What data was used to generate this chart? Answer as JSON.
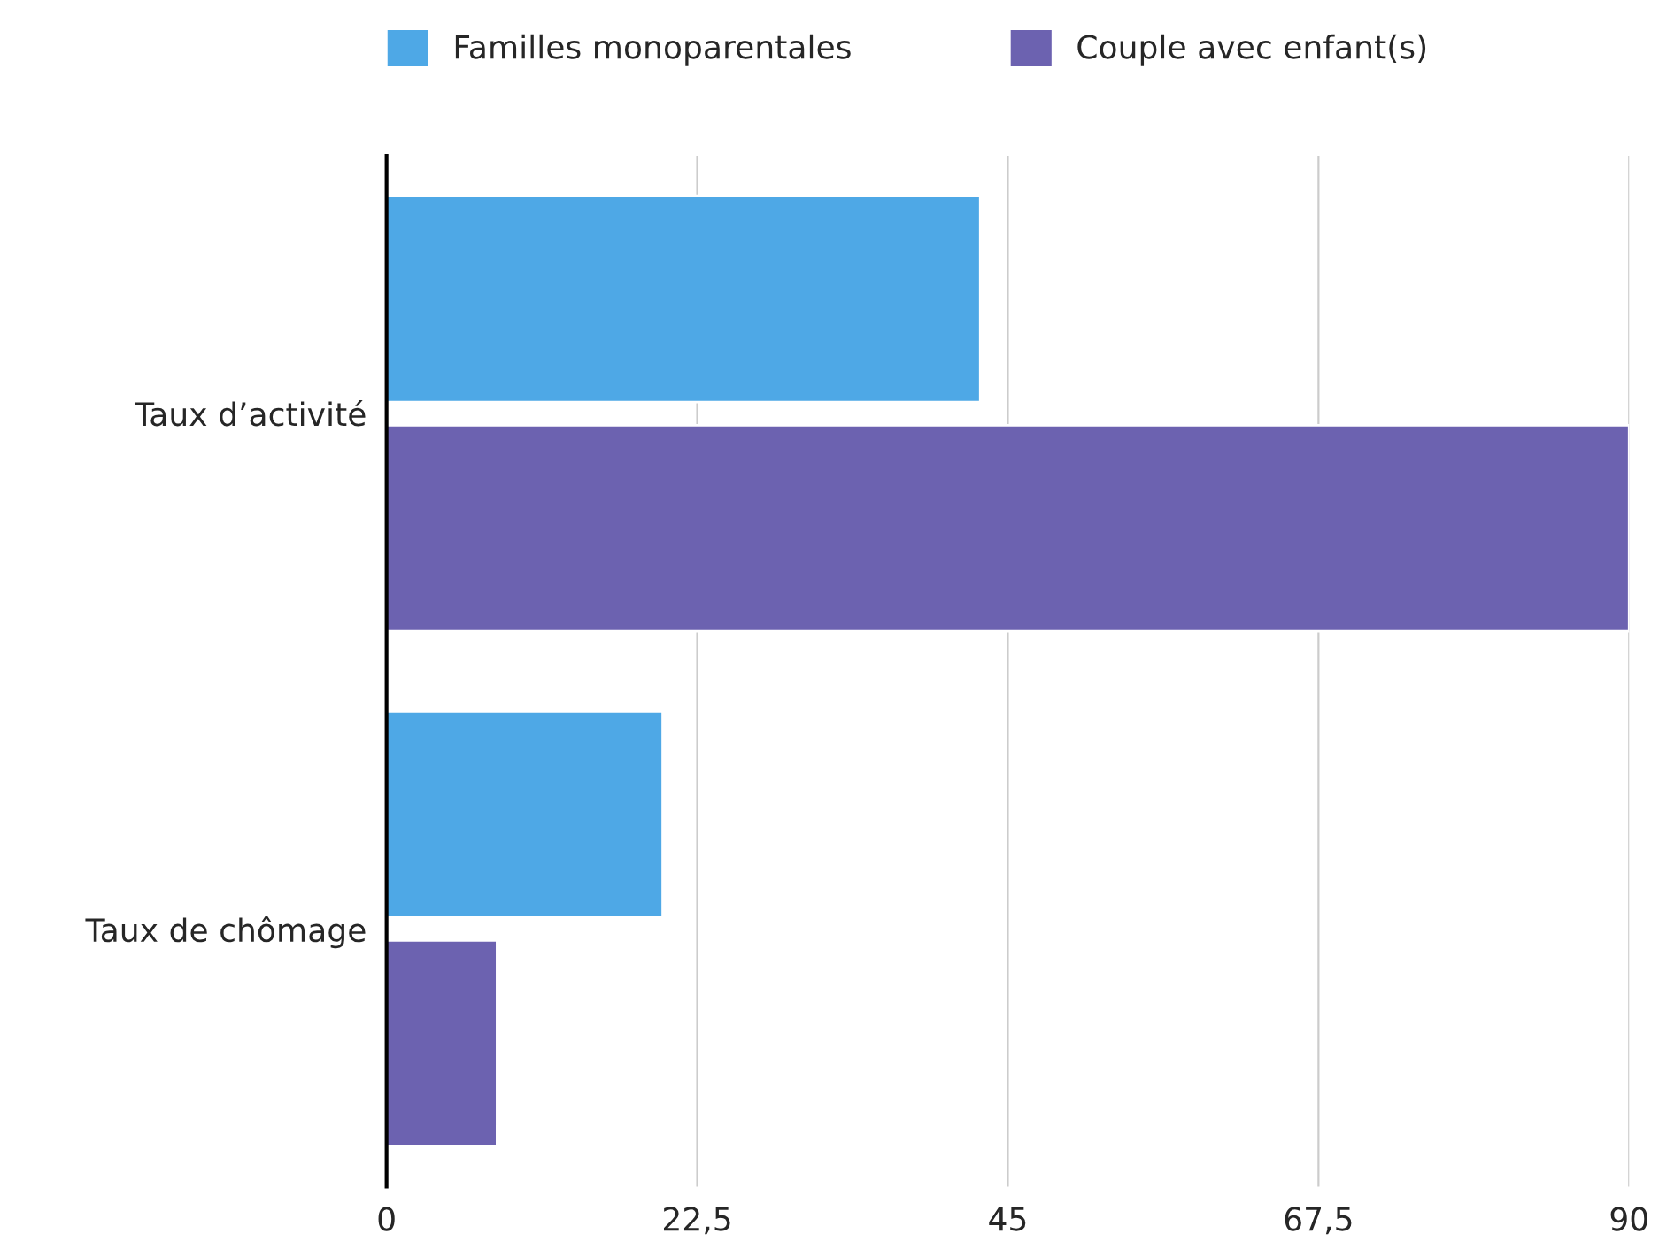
{
  "chart_data": {
    "type": "bar",
    "orientation": "horizontal",
    "categories": [
      "Taux d’activité",
      "Taux de chômage"
    ],
    "series": [
      {
        "name": "Familles monoparentales",
        "color": "#4ea8e6",
        "values": [
          43,
          20
        ]
      },
      {
        "name": "Couple avec enfant(s)",
        "color": "#6c62b0",
        "values": [
          90,
          8
        ]
      }
    ],
    "xlim": [
      0,
      90
    ],
    "xticks": [
      0,
      {
        "value": 22.5,
        "label": "22,5"
      },
      45,
      {
        "value": 67.5,
        "label": "67,5"
      },
      90
    ],
    "grid": "x",
    "legend": "top"
  }
}
